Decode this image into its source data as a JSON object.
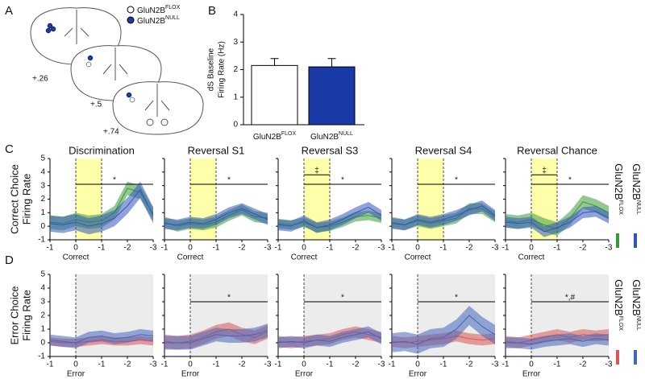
{
  "panel_labels": [
    "A",
    "B",
    "C",
    "D"
  ],
  "genotypes": [
    {
      "text": "GluN2B",
      "sup": "FLOX"
    },
    {
      "text": "GluN2B",
      "sup": "NULL"
    }
  ],
  "sections": [
    "+.26",
    "+.5",
    "+.74"
  ],
  "row_labels": [
    [
      "Correct Choice",
      "Firing Rate"
    ],
    [
      "Error Choice",
      "Firing Rate"
    ]
  ],
  "chart_data": [
    {
      "type": "bar",
      "ylabel": [
        "dS Baseline",
        "Firing Rate (Hz)"
      ],
      "categories": [
        "GluN2B",
        "GluN2B"
      ],
      "category_sups": [
        "FLOX",
        "NULL"
      ],
      "values": [
        2.15,
        2.1
      ],
      "errors": [
        0.25,
        0.3
      ],
      "colors": [
        "#ffffff",
        "#1a3aa8"
      ],
      "ylim": [
        0,
        4
      ],
      "yticks": [
        0,
        1,
        2,
        3,
        4
      ]
    },
    {
      "type": "line",
      "title": "Discrimination",
      "xlabel": "Correct",
      "shade": {
        "x": [
          0,
          1
        ],
        "color": "#ffffaa"
      },
      "x": [
        -1,
        -0.5,
        0,
        0.5,
        1,
        1.5,
        2,
        2.5,
        3
      ],
      "xlim": [
        -1,
        3
      ],
      "ylim": [
        -1,
        5
      ],
      "xticks": [
        -1,
        0,
        {
          "value": 1,
          "label": "-1"
        },
        {
          "value": 2,
          "label": "-2"
        },
        {
          "value": 3,
          "label": "-3"
        }
      ],
      "yticks": [
        -1,
        0,
        1,
        2,
        3,
        4,
        5
      ],
      "series": [
        {
          "color": "#3a9a3a",
          "values": [
            0.3,
            0.2,
            0.5,
            0.3,
            0.4,
            1.0,
            2.8,
            2.5,
            0.9
          ],
          "error": 0.5
        },
        {
          "color": "#3355bb",
          "values": [
            0.2,
            0.1,
            0.3,
            0.0,
            0.2,
            0.6,
            1.5,
            2.7,
            0.8
          ],
          "error": 0.6
        }
      ],
      "sig": [
        {
          "x": [
            0,
            3
          ],
          "y": 3.1,
          "label": "*"
        }
      ]
    },
    {
      "type": "line",
      "title": "Reversal  S1",
      "xlabel": "Correct",
      "shade": {
        "x": [
          0,
          1
        ],
        "color": "#ffffaa"
      },
      "x": [
        -1,
        -0.5,
        0,
        0.5,
        1,
        1.5,
        2,
        2.5,
        3
      ],
      "xlim": [
        -1,
        3
      ],
      "ylim": [
        -1,
        5
      ],
      "xticks": [
        -1,
        0,
        {
          "value": 1,
          "label": "-1"
        },
        {
          "value": 2,
          "label": "-2"
        },
        {
          "value": 3,
          "label": "-3"
        }
      ],
      "yticks": [
        -1,
        0,
        1,
        2,
        3,
        4,
        5
      ],
      "series": [
        {
          "color": "#3a9a3a",
          "values": [
            0.3,
            0.0,
            0.2,
            0.1,
            0.3,
            0.8,
            1.2,
            0.7,
            0.6
          ],
          "error": 0.4
        },
        {
          "color": "#3355bb",
          "values": [
            0.2,
            0.1,
            0.3,
            0.2,
            0.5,
            1.0,
            1.3,
            0.9,
            0.5
          ],
          "error": 0.4
        }
      ],
      "sig": [
        {
          "x": [
            0,
            3
          ],
          "y": 3.1,
          "label": "*"
        }
      ]
    },
    {
      "type": "line",
      "title": "Reversal  S3",
      "xlabel": "Correct",
      "shade": {
        "x": [
          0,
          1
        ],
        "color": "#ffffaa"
      },
      "x": [
        -1,
        -0.5,
        0,
        0.5,
        1,
        1.5,
        2,
        2.5,
        3
      ],
      "xlim": [
        -1,
        3
      ],
      "ylim": [
        -1,
        5
      ],
      "xticks": [
        -1,
        0,
        {
          "value": 1,
          "label": "-1"
        },
        {
          "value": 2,
          "label": "-2"
        },
        {
          "value": 3,
          "label": "-3"
        }
      ],
      "yticks": [
        -1,
        0,
        1,
        2,
        3,
        4,
        5
      ],
      "series": [
        {
          "color": "#3a9a3a",
          "values": [
            0.2,
            0.1,
            0.3,
            -0.1,
            0.0,
            0.3,
            0.7,
            0.8,
            0.6
          ],
          "error": 0.35
        },
        {
          "color": "#3355bb",
          "values": [
            0.1,
            0.0,
            0.4,
            -0.1,
            0.1,
            0.5,
            1.0,
            1.4,
            0.8
          ],
          "error": 0.4
        }
      ],
      "sig": [
        {
          "x": [
            0,
            1
          ],
          "y": 3.8,
          "label": "‡"
        },
        {
          "x": [
            0,
            3
          ],
          "y": 3.1,
          "label": "*"
        }
      ]
    },
    {
      "type": "line",
      "title": "Reversal  S4",
      "xlabel": "Correct",
      "shade": {
        "x": [
          0,
          1
        ],
        "color": "#ffffaa"
      },
      "x": [
        -1,
        -0.5,
        0,
        0.5,
        1,
        1.5,
        2,
        2.5,
        3
      ],
      "xlim": [
        -1,
        3
      ],
      "ylim": [
        -1,
        5
      ],
      "xticks": [
        -1,
        0,
        {
          "value": 1,
          "label": "-1"
        },
        {
          "value": 2,
          "label": "-2"
        },
        {
          "value": 3,
          "label": "-3"
        }
      ],
      "yticks": [
        -1,
        0,
        1,
        2,
        3,
        4,
        5
      ],
      "series": [
        {
          "color": "#3a9a3a",
          "values": [
            0.3,
            0.1,
            0.4,
            0.2,
            0.4,
            0.6,
            1.3,
            1.3,
            0.7
          ],
          "error": 0.4
        },
        {
          "color": "#3355bb",
          "values": [
            0.2,
            0.1,
            0.5,
            0.3,
            0.5,
            0.8,
            1.2,
            1.5,
            0.8
          ],
          "error": 0.4
        }
      ],
      "sig": [
        {
          "x": [
            0,
            3
          ],
          "y": 3.1,
          "label": "*"
        }
      ]
    },
    {
      "type": "line",
      "title": "Reversal  Chance",
      "xlabel": "Correct",
      "shade": {
        "x": [
          0,
          1
        ],
        "color": "#ffffaa"
      },
      "x": [
        -1,
        -0.5,
        0,
        0.5,
        1,
        1.5,
        2,
        2.5,
        3
      ],
      "xlim": [
        -1,
        3
      ],
      "ylim": [
        -1,
        5
      ],
      "xticks": [
        -1,
        0,
        {
          "value": 1,
          "label": "-1"
        },
        {
          "value": 2,
          "label": "-2"
        },
        {
          "value": 3,
          "label": "-3"
        }
      ],
      "yticks": [
        -1,
        0,
        1,
        2,
        3,
        4,
        5
      ],
      "series": [
        {
          "color": "#3a9a3a",
          "values": [
            0.4,
            0.3,
            0.5,
            0.1,
            -0.2,
            0.6,
            1.8,
            1.5,
            1.0
          ],
          "error": 0.5
        },
        {
          "color": "#3355bb",
          "values": [
            0.3,
            0.2,
            0.3,
            -0.4,
            -0.1,
            0.3,
            1.0,
            1.1,
            0.6
          ],
          "error": 0.4
        }
      ],
      "sig": [
        {
          "x": [
            0,
            1
          ],
          "y": 3.8,
          "label": "‡"
        },
        {
          "x": [
            0,
            3
          ],
          "y": 3.1,
          "label": "*"
        }
      ]
    },
    {
      "type": "line",
      "xlabel": "Error",
      "shade": {
        "x": [
          0,
          3
        ],
        "color": "#ececec"
      },
      "x": [
        -1,
        -0.5,
        0,
        0.5,
        1,
        1.5,
        2,
        2.5,
        3
      ],
      "xlim": [
        -1,
        3
      ],
      "ylim": [
        -1,
        5
      ],
      "xticks": [
        -1,
        0,
        {
          "value": 1,
          "label": "-1"
        },
        {
          "value": 2,
          "label": "-2"
        },
        {
          "value": 3,
          "label": "-3"
        }
      ],
      "yticks": [
        -1,
        0,
        1,
        2,
        3,
        4,
        5
      ],
      "series": [
        {
          "color": "#dd5555",
          "values": [
            0.1,
            0.0,
            0.0,
            0.1,
            0.2,
            0.1,
            0.1,
            0.2,
            0.1
          ],
          "error": 0.3
        },
        {
          "color": "#4466bb",
          "values": [
            0.2,
            0.1,
            0.0,
            0.4,
            0.5,
            0.3,
            0.4,
            0.6,
            0.5
          ],
          "error": 0.4
        }
      ],
      "sig": []
    },
    {
      "type": "line",
      "xlabel": "Error",
      "shade": {
        "x": [
          0,
          3
        ],
        "color": "#ececec"
      },
      "x": [
        -1,
        -0.5,
        0,
        0.5,
        1,
        1.5,
        2,
        2.5,
        3
      ],
      "xlim": [
        -1,
        3
      ],
      "ylim": [
        -1,
        5
      ],
      "xticks": [
        -1,
        0,
        {
          "value": 1,
          "label": "-1"
        },
        {
          "value": 2,
          "label": "-2"
        },
        {
          "value": 3,
          "label": "-3"
        }
      ],
      "yticks": [
        -1,
        0,
        1,
        2,
        3,
        4,
        5
      ],
      "series": [
        {
          "color": "#dd5555",
          "values": [
            0.1,
            0.0,
            0.1,
            0.4,
            0.8,
            1.0,
            0.6,
            0.4,
            0.8
          ],
          "error": 0.5
        },
        {
          "color": "#4466bb",
          "values": [
            0.0,
            0.0,
            0.0,
            0.3,
            0.6,
            0.5,
            0.5,
            0.6,
            0.9
          ],
          "error": 0.5
        }
      ],
      "sig": [
        {
          "x": [
            0,
            3
          ],
          "y": 3.0,
          "label": "*"
        }
      ]
    },
    {
      "type": "line",
      "xlabel": "Error",
      "shade": {
        "x": [
          0,
          3
        ],
        "color": "#ececec"
      },
      "x": [
        -1,
        -0.5,
        0,
        0.5,
        1,
        1.5,
        2,
        2.5,
        3
      ],
      "xlim": [
        -1,
        3
      ],
      "ylim": [
        -1,
        5
      ],
      "xticks": [
        -1,
        0,
        {
          "value": 1,
          "label": "-1"
        },
        {
          "value": 2,
          "label": "-2"
        },
        {
          "value": 3,
          "label": "-3"
        }
      ],
      "yticks": [
        -1,
        0,
        1,
        2,
        3,
        4,
        5
      ],
      "series": [
        {
          "color": "#dd5555",
          "values": [
            0.1,
            0.0,
            0.1,
            0.2,
            0.3,
            0.6,
            0.8,
            0.6,
            0.4
          ],
          "error": 0.4
        },
        {
          "color": "#4466bb",
          "values": [
            0.0,
            0.1,
            0.0,
            0.2,
            0.1,
            0.4,
            0.6,
            0.8,
            0.3
          ],
          "error": 0.4
        }
      ],
      "sig": [
        {
          "x": [
            0,
            3
          ],
          "y": 3.0,
          "label": "*"
        }
      ]
    },
    {
      "type": "line",
      "xlabel": "Error",
      "shade": {
        "x": [
          0,
          3
        ],
        "color": "#ececec"
      },
      "x": [
        -1,
        -0.5,
        0,
        0.5,
        1,
        1.5,
        2,
        2.5,
        3
      ],
      "xlim": [
        -1,
        3
      ],
      "ylim": [
        -1,
        5
      ],
      "xticks": [
        -1,
        0,
        {
          "value": 1,
          "label": "-1"
        },
        {
          "value": 2,
          "label": "-2"
        },
        {
          "value": 3,
          "label": "-3"
        }
      ],
      "yticks": [
        -1,
        0,
        1,
        2,
        3,
        4,
        5
      ],
      "series": [
        {
          "color": "#dd5555",
          "values": [
            0.1,
            0.0,
            0.1,
            0.2,
            0.3,
            0.5,
            0.3,
            0.2,
            0.3
          ],
          "error": 0.4
        },
        {
          "color": "#4466bb",
          "values": [
            0.0,
            0.1,
            -0.1,
            0.3,
            0.4,
            1.0,
            2.0,
            1.2,
            0.6
          ],
          "error": 0.7
        }
      ],
      "sig": [
        {
          "x": [
            0,
            3
          ],
          "y": 3.0,
          "label": "*"
        }
      ]
    },
    {
      "type": "line",
      "xlabel": "Error",
      "shade": {
        "x": [
          0,
          3
        ],
        "color": "#ececec"
      },
      "x": [
        -1,
        -0.5,
        0,
        0.5,
        1,
        1.5,
        2,
        2.5,
        3
      ],
      "xlim": [
        -1,
        3
      ],
      "ylim": [
        -1,
        5
      ],
      "xticks": [
        -1,
        0,
        {
          "value": 1,
          "label": "-1"
        },
        {
          "value": 2,
          "label": "-2"
        },
        {
          "value": 3,
          "label": "-3"
        }
      ],
      "yticks": [
        -1,
        0,
        1,
        2,
        3,
        4,
        5
      ],
      "series": [
        {
          "color": "#dd5555",
          "values": [
            0.1,
            0.0,
            0.2,
            0.4,
            0.6,
            0.4,
            0.6,
            0.5,
            0.6
          ],
          "error": 0.4
        },
        {
          "color": "#4466bb",
          "values": [
            0.0,
            0.0,
            -0.1,
            0.1,
            0.2,
            0.3,
            0.1,
            0.3,
            0.2
          ],
          "error": 0.4
        }
      ],
      "sig": [
        {
          "x": [
            0,
            3
          ],
          "y": 3.0,
          "label": "*,#"
        }
      ]
    }
  ]
}
